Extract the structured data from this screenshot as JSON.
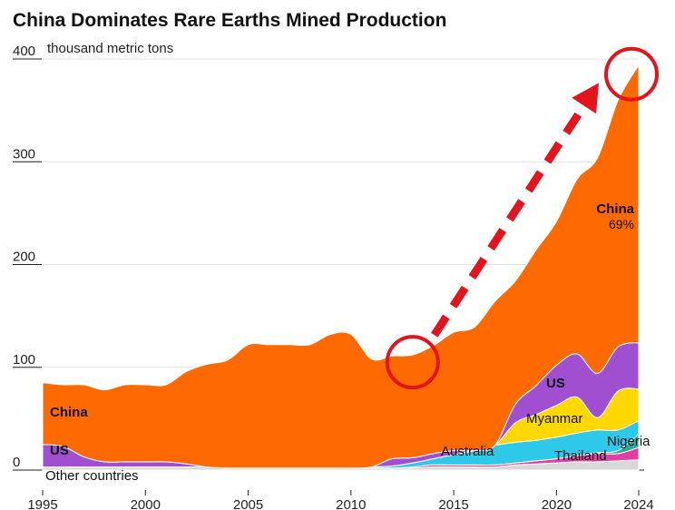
{
  "chart_data": {
    "type": "area",
    "title": "China Dominates Rare Earths Mined Production",
    "unit_label": "thousand metric tons",
    "ylim": [
      0,
      400
    ],
    "yticks": [
      "0",
      "100",
      "200",
      "300",
      "400"
    ],
    "xlim": [
      1995,
      2024
    ],
    "xticks": [
      "1995",
      "2000",
      "2005",
      "2010",
      "2015",
      "2020",
      "2024"
    ],
    "x": [
      1995,
      1996,
      1997,
      1998,
      1999,
      2000,
      2001,
      2002,
      2003,
      2004,
      2005,
      2006,
      2007,
      2008,
      2009,
      2010,
      2011,
      2012,
      2013,
      2014,
      2015,
      2016,
      2017,
      2018,
      2019,
      2020,
      2021,
      2022,
      2023,
      2024
    ],
    "series": [
      {
        "name": "Other countries",
        "color": "#d8d8d8",
        "values": [
          3,
          3,
          3,
          3,
          3,
          3,
          3,
          3,
          3,
          2,
          2,
          2,
          2,
          2,
          2,
          2,
          2,
          2,
          2,
          3,
          3,
          3,
          3,
          5,
          6,
          7,
          8,
          8,
          9,
          10
        ]
      },
      {
        "name": "Thailand",
        "color": "#e040a0",
        "values": [
          0,
          0,
          0,
          0,
          0,
          0,
          0,
          0,
          0,
          0,
          0,
          0,
          0,
          0,
          0,
          0,
          0,
          0,
          1,
          2,
          2,
          2,
          2,
          2,
          3,
          4,
          6,
          8,
          7,
          12
        ]
      },
      {
        "name": "Nigeria",
        "color": "#2ea89a",
        "values": [
          0,
          0,
          0,
          0,
          0,
          0,
          0,
          0,
          0,
          0,
          0,
          0,
          0,
          0,
          0,
          0,
          0,
          0,
          0,
          0,
          0,
          0,
          0,
          0,
          0,
          0,
          0,
          1,
          3,
          13
        ]
      },
      {
        "name": "Australia",
        "color": "#2ec8e8",
        "values": [
          0,
          0,
          0,
          0,
          0,
          0,
          0,
          0,
          0,
          0,
          0,
          0,
          0,
          0,
          0,
          0,
          1,
          2,
          4,
          6,
          10,
          14,
          19,
          20,
          20,
          21,
          22,
          22,
          20,
          13
        ]
      },
      {
        "name": "Myanmar",
        "color": "#ffd800",
        "values": [
          0,
          0,
          0,
          0,
          0,
          0,
          0,
          0,
          0,
          0,
          0,
          0,
          0,
          0,
          0,
          0,
          0,
          0,
          0,
          0,
          0,
          0,
          0,
          19,
          25,
          31,
          35,
          12,
          38,
          31
        ]
      },
      {
        "name": "US",
        "color": "#a04fd0",
        "values": [
          22,
          20,
          10,
          5,
          5,
          5,
          5,
          3,
          0,
          0,
          0,
          0,
          0,
          0,
          0,
          0,
          0,
          7,
          5,
          5,
          4,
          0,
          0,
          18,
          28,
          39,
          42,
          43,
          43,
          45
        ]
      },
      {
        "name": "China",
        "color": "#ff6a00",
        "values": [
          60,
          60,
          70,
          70,
          75,
          75,
          75,
          90,
          100,
          105,
          120,
          120,
          120,
          120,
          130,
          130,
          105,
          100,
          100,
          105,
          115,
          120,
          140,
          120,
          132,
          140,
          170,
          210,
          240,
          270
        ]
      }
    ],
    "labels": {
      "china_main": "China",
      "china_share_name": "China",
      "china_share": "69%",
      "us_left": "US",
      "other": "Other countries",
      "australia": "Australia",
      "us_right": "US",
      "myanmar": "Myanmar",
      "thailand": "Thailand",
      "nigeria": "Nigeria"
    },
    "annotation": {
      "arrow_color": "#e3141c",
      "style": "dashed",
      "from_year": 2013,
      "to_year": 2024
    }
  }
}
